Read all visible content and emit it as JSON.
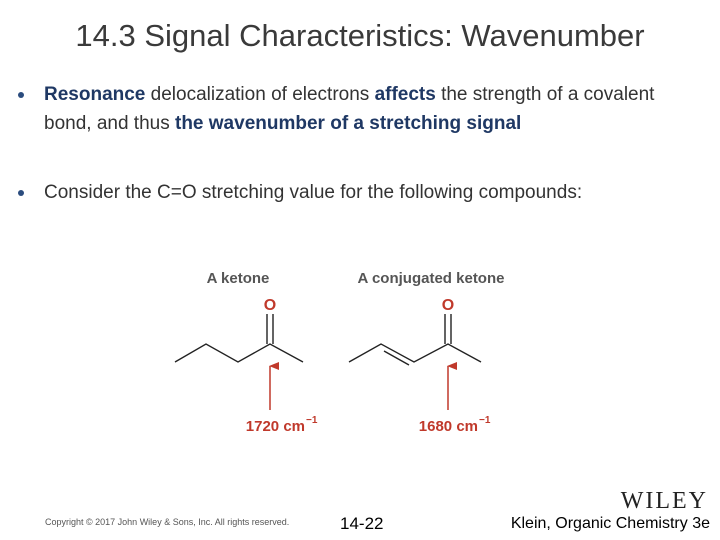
{
  "header": {
    "title": "14.3 Signal Characteristics: Wavenumber"
  },
  "bullets": [
    {
      "runs": [
        {
          "text": "Resonance",
          "bold": true
        },
        {
          "text": " delocalization of electrons ",
          "bold": false
        },
        {
          "text": "affects",
          "bold": true
        },
        {
          "text": " the strength of a covalent bond, and thus ",
          "bold": false
        },
        {
          "text": "the wavenumber of a stretching signal",
          "bold": true
        }
      ]
    },
    {
      "runs": [
        {
          "text": "Consider the C=O stretching value for the following compounds:",
          "bold": false
        }
      ]
    }
  ],
  "compounds": [
    {
      "name": "A ketone",
      "atom": "O",
      "wavenumber": "1720 cm",
      "exponent": "−1"
    },
    {
      "name": "A conjugated ketone",
      "atom": "O",
      "wavenumber": "1680 cm",
      "exponent": "−1"
    }
  ],
  "footer": {
    "copyright": "Copyright © 2017 John Wiley & Sons, Inc. All rights reserved.",
    "page": "14-22",
    "citation": "Klein, Organic Chemistry 3e",
    "logo": "WILEY"
  }
}
